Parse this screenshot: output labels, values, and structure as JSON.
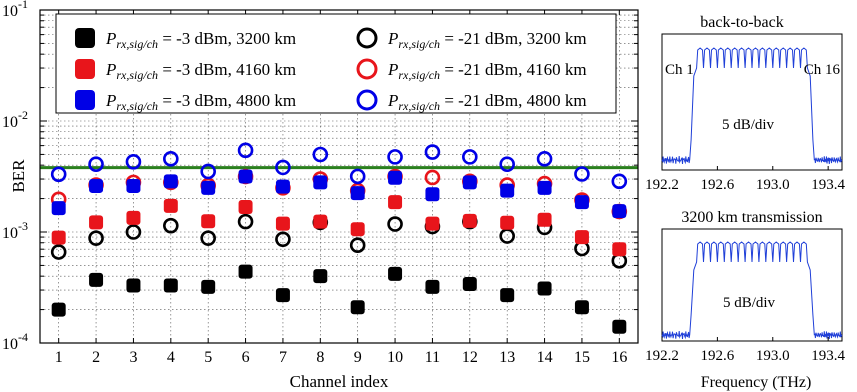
{
  "chart_data": [
    {
      "type": "scatter",
      "xlabel": "Channel index",
      "ylabel": "BER",
      "xlim": [
        0.5,
        16.5
      ],
      "ylim": [
        0.0001,
        0.1
      ],
      "yscale": "log",
      "x_ticks": [
        "1",
        "2",
        "3",
        "4",
        "5",
        "6",
        "7",
        "8",
        "9",
        "10",
        "11",
        "12",
        "13",
        "14",
        "15",
        "16"
      ],
      "y_ticks": [
        {
          "value": 0.0001,
          "base": "10",
          "exp": "-4"
        },
        {
          "value": 0.001,
          "base": "10",
          "exp": "-3"
        },
        {
          "value": 0.01,
          "base": "10",
          "exp": "-2"
        },
        {
          "value": 0.1,
          "base": "10",
          "exp": "-1"
        }
      ],
      "grid": true,
      "legend_position": "top",
      "threshold_line": {
        "y": 0.0038,
        "color": "#2a7f1d"
      },
      "x": [
        1,
        2,
        3,
        4,
        5,
        6,
        7,
        8,
        9,
        10,
        11,
        12,
        13,
        14,
        15,
        16
      ],
      "series": [
        {
          "legend_sub": "rx,sig/ch",
          "legend_text": " = -3 dBm, 3200 km",
          "color": "#000000",
          "marker": "filled-square",
          "values": [
            0.0002,
            0.00037,
            0.00033,
            0.00033,
            0.00032,
            0.00044,
            0.00027,
            0.0004,
            0.00021,
            0.00042,
            0.00032,
            0.00034,
            0.00027,
            0.00031,
            0.00021,
            0.00014
          ]
        },
        {
          "legend_sub": "rx,sig/ch",
          "legend_text": " = -21 dBm, 3200 km",
          "color": "#000000",
          "marker": "open-circle",
          "values": [
            0.00066,
            0.00088,
            0.001,
            0.00114,
            0.00088,
            0.00124,
            0.00086,
            0.00122,
            0.00076,
            0.00118,
            0.00112,
            0.00124,
            0.00092,
            0.0011,
            0.00071,
            0.00055
          ]
        },
        {
          "legend_sub": "rx,sig/ch",
          "legend_text": " = -3 dBm, 4160 km",
          "color": "#e8151b",
          "marker": "filled-square",
          "values": [
            0.00089,
            0.00122,
            0.00134,
            0.00172,
            0.00125,
            0.00168,
            0.00119,
            0.00124,
            0.00106,
            0.00186,
            0.00119,
            0.00126,
            0.00121,
            0.00129,
            0.0009,
            0.0007
          ]
        },
        {
          "legend_sub": "rx,sig/ch",
          "legend_text": " = -21 dBm, 4160 km",
          "color": "#e8151b",
          "marker": "open-circle",
          "values": [
            0.00197,
            0.00265,
            0.0028,
            0.0028,
            0.00262,
            0.00316,
            0.0025,
            0.003,
            0.00236,
            0.00316,
            0.0031,
            0.00286,
            0.00265,
            0.00273,
            0.00194,
            0.00153
          ]
        },
        {
          "legend_sub": "rx,sig/ch",
          "legend_text": " = -3 dBm, 4800 km",
          "color": "#0000e6",
          "marker": "filled-square",
          "values": [
            0.00164,
            0.0026,
            0.0026,
            0.00286,
            0.0025,
            0.00316,
            0.00256,
            0.0028,
            0.00224,
            0.00308,
            0.00219,
            0.0028,
            0.00236,
            0.0025,
            0.00186,
            0.00154
          ]
        },
        {
          "legend_sub": "rx,sig/ch",
          "legend_text": " = -21 dBm, 4800 km",
          "color": "#0000e6",
          "marker": "open-circle",
          "values": [
            0.00331,
            0.00408,
            0.00429,
            0.00456,
            0.00351,
            0.00544,
            0.00382,
            0.00499,
            0.00317,
            0.00475,
            0.00525,
            0.00475,
            0.00408,
            0.00456,
            0.00333,
            0.00286
          ]
        }
      ]
    },
    {
      "type": "line",
      "title": "back-to-back",
      "xlabel": "",
      "x_ticks": [
        "192.2",
        "192.6",
        "193.0",
        "193.4"
      ],
      "xlim": [
        192.2,
        193.5
      ],
      "annotations": [
        "Ch 1",
        "Ch 16",
        "5 dB/div"
      ],
      "channels": 16,
      "band_thz": [
        192.45,
        193.25
      ],
      "color": "#1f3fd8"
    },
    {
      "type": "line",
      "title": "3200 km transmission",
      "xlabel": "Frequency (THz)",
      "x_ticks": [
        "192.2",
        "192.6",
        "193.0",
        "193.4"
      ],
      "xlim": [
        192.2,
        193.5
      ],
      "annotations": [
        "5 dB/div"
      ],
      "channels": 16,
      "band_thz": [
        192.45,
        193.25
      ],
      "color": "#1f3fd8"
    }
  ],
  "legend_symbol": "P"
}
